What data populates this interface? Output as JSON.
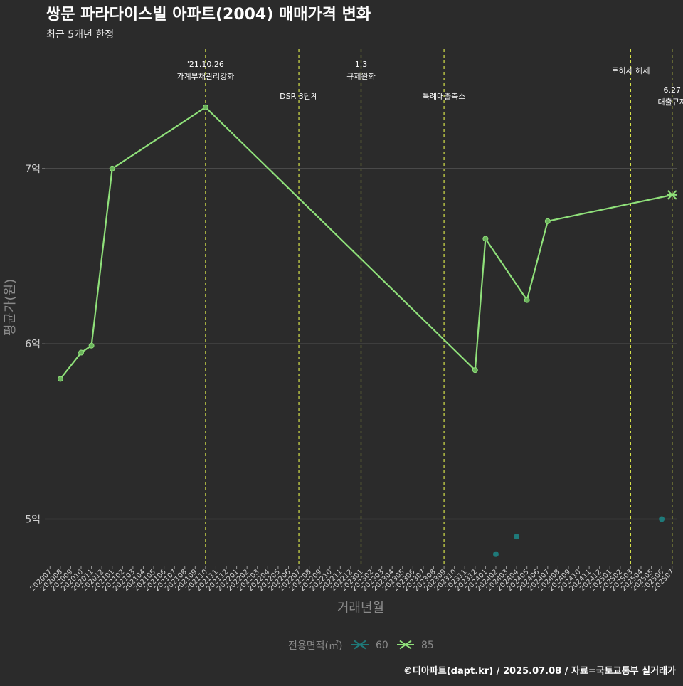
{
  "chart_data": {
    "type": "line",
    "title": "쌍문 파라다이스빌 아파트(2004) 매매가격 변화",
    "subtitle": "최근 5개년 한정",
    "xlabel": "거래년월",
    "ylabel": "평균가(원)",
    "categories": [
      "202007",
      "202008",
      "202009",
      "202010",
      "202011",
      "202012",
      "202101",
      "202102",
      "202103",
      "202104",
      "202105",
      "202106",
      "202107",
      "202108",
      "202109",
      "202110",
      "202111",
      "202112",
      "202201",
      "202202",
      "202203",
      "202204",
      "202205",
      "202206",
      "202207",
      "202208",
      "202209",
      "202210",
      "202211",
      "202212",
      "202301",
      "202302",
      "202303",
      "202304",
      "202305",
      "202306",
      "202307",
      "202308",
      "202309",
      "202310",
      "202311",
      "202312",
      "202401",
      "202402",
      "202403",
      "202404",
      "202405",
      "202406",
      "202407",
      "202408",
      "202409",
      "202410",
      "202411",
      "202412",
      "202501",
      "202502",
      "202503",
      "202504",
      "202505",
      "202506",
      "202507"
    ],
    "y_ticks": [
      {
        "value": 500000000,
        "label": "5억"
      },
      {
        "value": 600000000,
        "label": "6억"
      },
      {
        "value": 700000000,
        "label": "7억"
      }
    ],
    "ylim": [
      473000000,
      769000000
    ],
    "grid": true,
    "legend": {
      "title": "전용면적(㎡)",
      "position": "bottom"
    },
    "series": [
      {
        "name": "60",
        "color": "#1f7a7a",
        "line": false,
        "points": [
          {
            "x": "202402",
            "y": 480000000
          },
          {
            "x": "202404",
            "y": 490000000
          },
          {
            "x": "202506",
            "y": 500000000
          }
        ]
      },
      {
        "name": "85",
        "color": "#8fe07a",
        "line": true,
        "points": [
          {
            "x": "202008",
            "y": 580000000
          },
          {
            "x": "202010",
            "y": 595000000
          },
          {
            "x": "202011",
            "y": 599000000
          },
          {
            "x": "202101",
            "y": 700000000
          },
          {
            "x": "202110",
            "y": 735000000
          },
          {
            "x": "202312",
            "y": 585000000
          },
          {
            "x": "202401",
            "y": 660000000
          },
          {
            "x": "202405",
            "y": 625000000
          },
          {
            "x": "202407",
            "y": 670000000
          },
          {
            "x": "202507",
            "y": 685000000
          }
        ],
        "current_marker": {
          "x": "202507",
          "y": 685000000
        }
      }
    ],
    "annotations": [
      {
        "x": "202110",
        "lines": [
          "'21.10.26",
          "가계부채관리강화"
        ],
        "row": "high"
      },
      {
        "x": "202207",
        "lines": [
          "DSR 3단계"
        ],
        "row": "low"
      },
      {
        "x": "202301",
        "lines": [
          "1.3",
          "규제완화"
        ],
        "row": "high"
      },
      {
        "x": "202309",
        "lines": [
          "특례대출축소"
        ],
        "row": "low"
      },
      {
        "x": "202503",
        "lines": [
          "토허제 해제"
        ],
        "row": "mid"
      },
      {
        "x": "202507",
        "lines": [
          "6.27",
          "대출규제"
        ],
        "row": "right"
      }
    ],
    "vline_color": "#d4e04a",
    "caption": "©디아파트(dapt.kr) / 2025.07.08 / 자료=국토교통부 실거래가"
  }
}
